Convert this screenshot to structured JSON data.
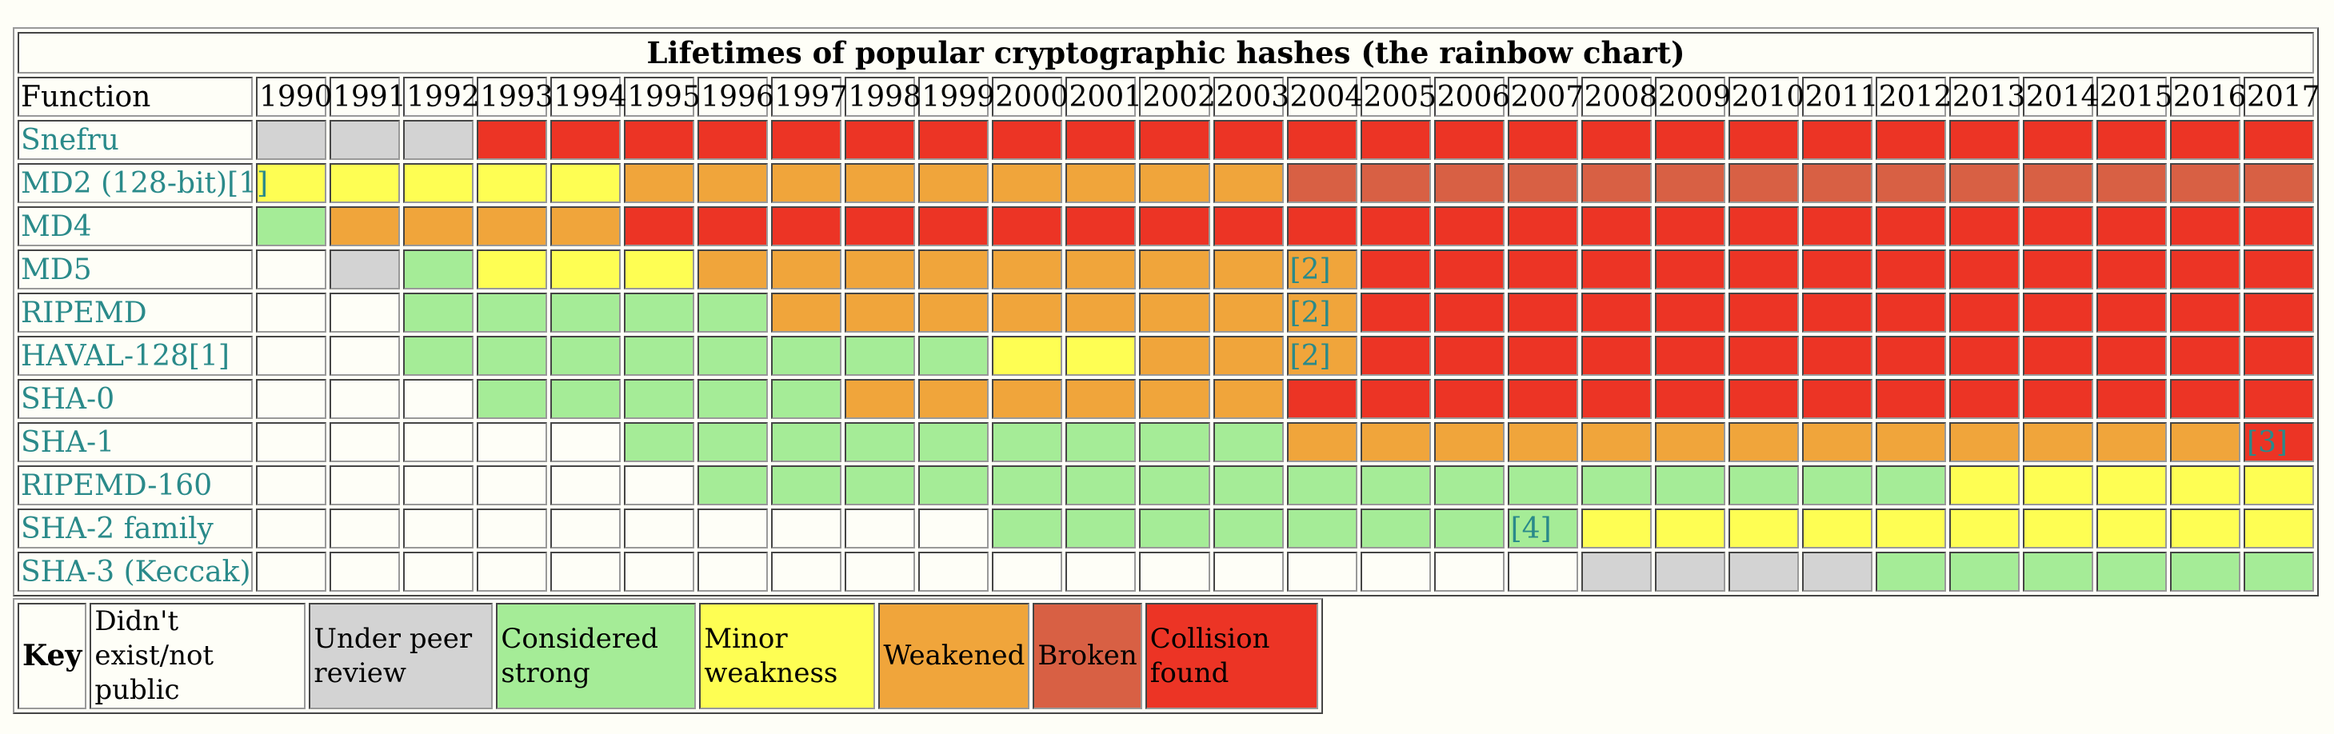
{
  "title": "Lifetimes of popular cryptographic hashes (the rainbow chart)",
  "header_label": "Function",
  "years": [
    "1990",
    "1991",
    "1992",
    "1993",
    "1994",
    "1995",
    "1996",
    "1997",
    "1998",
    "1999",
    "2000",
    "2001",
    "2002",
    "2003",
    "2004",
    "2005",
    "2006",
    "2007",
    "2008",
    "2009",
    "2010",
    "2011",
    "2012",
    "2013",
    "2014",
    "2015",
    "2016",
    "2017"
  ],
  "status_colors": {
    "n": "#fefef7",
    "p": "#d3d3d3",
    "s": "#a5ec97",
    "m": "#fefe53",
    "w": "#f0a53b",
    "b": "#d86044",
    "c": "#ec3425"
  },
  "rows": [
    {
      "name": "Snefru",
      "cells": [
        "p",
        "p",
        "p",
        "c",
        "c",
        "c",
        "c",
        "c",
        "c",
        "c",
        "c",
        "c",
        "c",
        "c",
        "c",
        "c",
        "c",
        "c",
        "c",
        "c",
        "c",
        "c",
        "c",
        "c",
        "c",
        "c",
        "c",
        "c"
      ]
    },
    {
      "name": "MD2 (128-bit)[1]",
      "cells": [
        "m",
        "m",
        "m",
        "m",
        "m",
        "w",
        "w",
        "w",
        "w",
        "w",
        "w",
        "w",
        "w",
        "w",
        "b",
        "b",
        "b",
        "b",
        "b",
        "b",
        "b",
        "b",
        "b",
        "b",
        "b",
        "b",
        "b",
        "b"
      ]
    },
    {
      "name": "MD4",
      "cells": [
        "s",
        "w",
        "w",
        "w",
        "w",
        "c",
        "c",
        "c",
        "c",
        "c",
        "c",
        "c",
        "c",
        "c",
        "c",
        "c",
        "c",
        "c",
        "c",
        "c",
        "c",
        "c",
        "c",
        "c",
        "c",
        "c",
        "c",
        "c"
      ]
    },
    {
      "name": "MD5",
      "cells": [
        "n",
        "p",
        "s",
        "m",
        "m",
        "m",
        "w",
        "w",
        "w",
        "w",
        "w",
        "w",
        "w",
        "w",
        "w:[2]",
        "c",
        "c",
        "c",
        "c",
        "c",
        "c",
        "c",
        "c",
        "c",
        "c",
        "c",
        "c",
        "c"
      ]
    },
    {
      "name": "RIPEMD",
      "cells": [
        "n",
        "n",
        "s",
        "s",
        "s",
        "s",
        "s",
        "w",
        "w",
        "w",
        "w",
        "w",
        "w",
        "w",
        "w:[2]",
        "c",
        "c",
        "c",
        "c",
        "c",
        "c",
        "c",
        "c",
        "c",
        "c",
        "c",
        "c",
        "c"
      ]
    },
    {
      "name": "HAVAL-128[1]",
      "cells": [
        "n",
        "n",
        "s",
        "s",
        "s",
        "s",
        "s",
        "s",
        "s",
        "s",
        "m",
        "m",
        "w",
        "w",
        "w:[2]",
        "c",
        "c",
        "c",
        "c",
        "c",
        "c",
        "c",
        "c",
        "c",
        "c",
        "c",
        "c",
        "c"
      ]
    },
    {
      "name": "SHA-0",
      "cells": [
        "n",
        "n",
        "n",
        "s",
        "s",
        "s",
        "s",
        "s",
        "w",
        "w",
        "w",
        "w",
        "w",
        "w",
        "c",
        "c",
        "c",
        "c",
        "c",
        "c",
        "c",
        "c",
        "c",
        "c",
        "c",
        "c",
        "c",
        "c"
      ]
    },
    {
      "name": "SHA-1",
      "cells": [
        "n",
        "n",
        "n",
        "n",
        "n",
        "s",
        "s",
        "s",
        "s",
        "s",
        "s",
        "s",
        "s",
        "s",
        "w",
        "w",
        "w",
        "w",
        "w",
        "w",
        "w",
        "w",
        "w",
        "w",
        "w",
        "w",
        "w",
        "c:[3]"
      ]
    },
    {
      "name": "RIPEMD-160",
      "cells": [
        "n",
        "n",
        "n",
        "n",
        "n",
        "n",
        "s",
        "s",
        "s",
        "s",
        "s",
        "s",
        "s",
        "s",
        "s",
        "s",
        "s",
        "s",
        "s",
        "s",
        "s",
        "s",
        "s",
        "m",
        "m",
        "m",
        "m",
        "m"
      ]
    },
    {
      "name": "SHA-2 family",
      "cells": [
        "n",
        "n",
        "n",
        "n",
        "n",
        "n",
        "n",
        "n",
        "n",
        "n",
        "s",
        "s",
        "s",
        "s",
        "s",
        "s",
        "s",
        "s:[4]",
        "m",
        "m",
        "m",
        "m",
        "m",
        "m",
        "m",
        "m",
        "m",
        "m"
      ]
    },
    {
      "name": "SHA-3 (Keccak)",
      "cells": [
        "n",
        "n",
        "n",
        "n",
        "n",
        "n",
        "n",
        "n",
        "n",
        "n",
        "n",
        "n",
        "n",
        "n",
        "n",
        "n",
        "n",
        "n",
        "p",
        "p",
        "p",
        "p",
        "s",
        "s",
        "s",
        "s",
        "s",
        "s"
      ]
    }
  ],
  "key": {
    "label": "Key",
    "items": [
      {
        "code": "n",
        "text": "Didn't exist/not public"
      },
      {
        "code": "p",
        "text": "Under peer review"
      },
      {
        "code": "s",
        "text": "Considered strong"
      },
      {
        "code": "m",
        "text": "Minor weakness"
      },
      {
        "code": "w",
        "text": "Weakened"
      },
      {
        "code": "b",
        "text": "Broken"
      },
      {
        "code": "c",
        "text": "Collision found"
      }
    ]
  }
}
